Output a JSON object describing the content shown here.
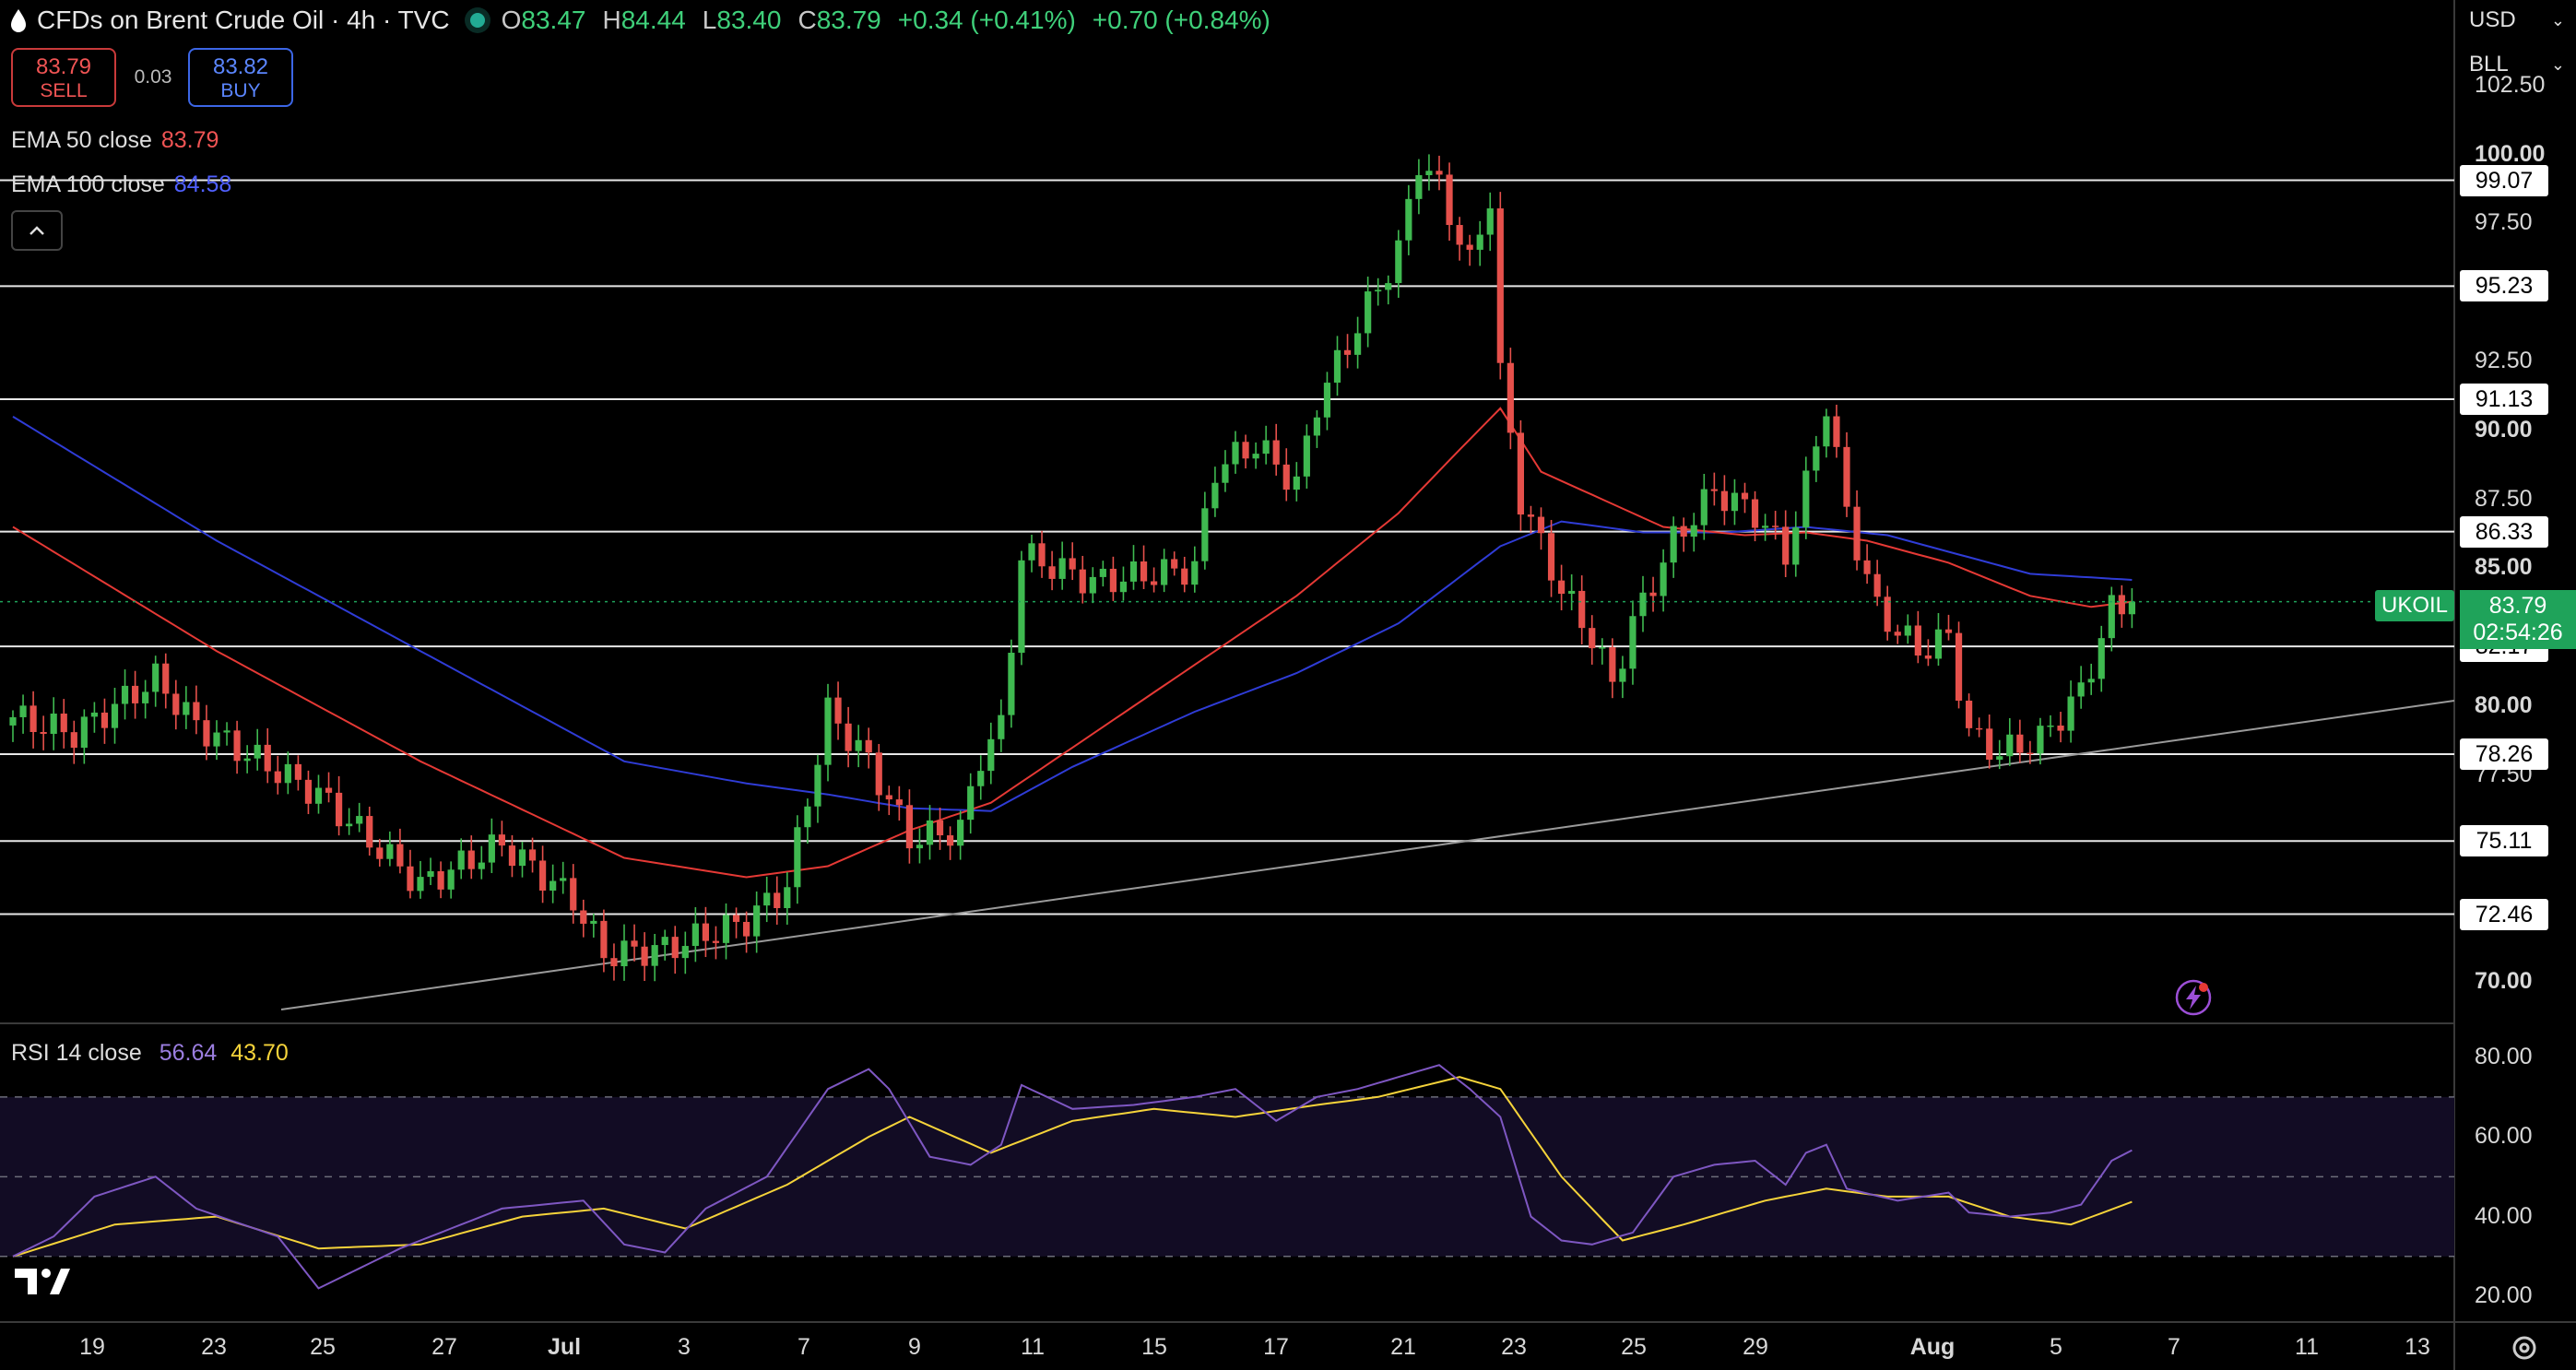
{
  "header": {
    "title": "CFDs on Brent Crude Oil · 4h · TVC",
    "open_label": "O",
    "open": "83.47",
    "high_label": "H",
    "high": "84.44",
    "low_label": "L",
    "low": "83.40",
    "close_label": "C",
    "close": "83.79",
    "change": "+0.34 (+0.41%)",
    "change2": "+0.70 (+0.84%)"
  },
  "trade": {
    "sell_price": "83.79",
    "sell_label": "SELL",
    "spread": "0.03",
    "buy_price": "83.82",
    "buy_label": "BUY"
  },
  "indicators": {
    "ema50_label": "EMA 50 close",
    "ema50_value": "83.79",
    "ema100_label": "EMA 100 close",
    "ema100_value": "84.58",
    "rsi_label": "RSI 14 close",
    "rsi_value": "56.64",
    "rsi_ma_value": "43.70"
  },
  "right_panel": {
    "currency": "USD",
    "unit": "BLL",
    "symbol_tag": "UKOIL",
    "last_price": "83.79",
    "countdown": "02:54:26"
  },
  "colors": {
    "up": "#3fb950",
    "down": "#e5504b",
    "ema50": "#e53935",
    "ema100": "#2f3cd6",
    "rsi": "#7e57c2",
    "rsi_ma": "#f5d33a",
    "last_price": "#1fa35a"
  },
  "chart_data": {
    "type": "candlestick",
    "symbol": "UKOIL",
    "timeframe": "4h",
    "y_ticks": [
      "102.50",
      "100.00",
      "97.50",
      "92.50",
      "90.00",
      "87.50",
      "85.00",
      "80.00",
      "77.50",
      "70.00"
    ],
    "ylim": [
      68.5,
      103.6
    ],
    "horizontal_levels": [
      "99.07",
      "95.23",
      "91.13",
      "86.33",
      "82.17",
      "78.26",
      "75.11",
      "72.46"
    ],
    "x_ticks": [
      "19",
      "23",
      "25",
      "27",
      "Jul",
      "3",
      "7",
      "9",
      "11",
      "15",
      "17",
      "21",
      "23",
      "25",
      "29",
      "Aug",
      "5",
      "7",
      "11",
      "13"
    ],
    "trendline_start": 69.0,
    "trendline_end": 80.2,
    "rsi_ticks": [
      "80.00",
      "60.00",
      "40.00",
      "20.00"
    ],
    "rsi_bands": [
      70,
      50,
      30
    ],
    "rsi_ylim": [
      14,
      88
    ],
    "close_keypoints": [
      [
        0,
        79.6
      ],
      [
        6,
        79.0
      ],
      [
        14,
        81.0
      ],
      [
        18,
        79.3
      ],
      [
        30,
        76.8
      ],
      [
        40,
        73.5
      ],
      [
        48,
        75.0
      ],
      [
        55,
        73.0
      ],
      [
        58,
        71.0
      ],
      [
        64,
        71.2
      ],
      [
        72,
        72.2
      ],
      [
        76,
        73.5
      ],
      [
        80,
        79.8
      ],
      [
        84,
        78.0
      ],
      [
        88,
        75.2
      ],
      [
        93,
        75.5
      ],
      [
        95,
        78.2
      ],
      [
        97,
        79.2
      ],
      [
        99,
        85.5
      ],
      [
        106,
        84.5
      ],
      [
        116,
        85.0
      ],
      [
        118,
        88.6
      ],
      [
        122,
        89.5
      ],
      [
        126,
        88.0
      ],
      [
        128,
        91.0
      ],
      [
        133,
        94.5
      ],
      [
        136,
        96.5
      ],
      [
        138,
        99.8
      ],
      [
        140,
        98.8
      ],
      [
        143,
        96.0
      ],
      [
        145,
        98.5
      ],
      [
        146,
        92.0
      ],
      [
        148,
        87.5
      ],
      [
        152,
        84.2
      ],
      [
        155,
        82.5
      ],
      [
        157,
        80.8
      ],
      [
        159,
        83.0
      ],
      [
        163,
        86.0
      ],
      [
        167,
        87.8
      ],
      [
        171,
        87.0
      ],
      [
        174,
        85.5
      ],
      [
        176,
        88.0
      ],
      [
        178,
        91.0
      ],
      [
        180,
        87.0
      ],
      [
        183,
        83.5
      ],
      [
        187,
        82.0
      ],
      [
        190,
        82.5
      ],
      [
        192,
        79.0
      ],
      [
        195,
        78.3
      ],
      [
        199,
        78.8
      ],
      [
        203,
        80.5
      ],
      [
        206,
        83.5
      ],
      [
        208,
        83.79
      ]
    ],
    "rsi_keypoints": [
      [
        0,
        30
      ],
      [
        4,
        35
      ],
      [
        8,
        45
      ],
      [
        14,
        50
      ],
      [
        18,
        42
      ],
      [
        26,
        35
      ],
      [
        30,
        22
      ],
      [
        38,
        32
      ],
      [
        48,
        42
      ],
      [
        56,
        44
      ],
      [
        60,
        33
      ],
      [
        64,
        31
      ],
      [
        68,
        42
      ],
      [
        74,
        50
      ],
      [
        80,
        72
      ],
      [
        84,
        77
      ],
      [
        86,
        72
      ],
      [
        90,
        55
      ],
      [
        94,
        53
      ],
      [
        97,
        58
      ],
      [
        99,
        73
      ],
      [
        104,
        67
      ],
      [
        110,
        68
      ],
      [
        116,
        70
      ],
      [
        120,
        72
      ],
      [
        124,
        64
      ],
      [
        128,
        70
      ],
      [
        132,
        72
      ],
      [
        136,
        75
      ],
      [
        140,
        78
      ],
      [
        143,
        72
      ],
      [
        146,
        65
      ],
      [
        149,
        40
      ],
      [
        152,
        34
      ],
      [
        155,
        33
      ],
      [
        159,
        36
      ],
      [
        163,
        50
      ],
      [
        167,
        53
      ],
      [
        171,
        54
      ],
      [
        174,
        48
      ],
      [
        176,
        56
      ],
      [
        178,
        58
      ],
      [
        180,
        47
      ],
      [
        185,
        44
      ],
      [
        190,
        46
      ],
      [
        192,
        41
      ],
      [
        196,
        40
      ],
      [
        200,
        41
      ],
      [
        203,
        43
      ],
      [
        206,
        54
      ],
      [
        208,
        56.64
      ]
    ],
    "rsi_ma_keypoints": [
      [
        0,
        30
      ],
      [
        10,
        38
      ],
      [
        20,
        40
      ],
      [
        30,
        32
      ],
      [
        40,
        33
      ],
      [
        50,
        40
      ],
      [
        58,
        42
      ],
      [
        66,
        37
      ],
      [
        76,
        48
      ],
      [
        84,
        60
      ],
      [
        88,
        65
      ],
      [
        96,
        56
      ],
      [
        104,
        64
      ],
      [
        112,
        67
      ],
      [
        120,
        65
      ],
      [
        128,
        68
      ],
      [
        134,
        70
      ],
      [
        142,
        75
      ],
      [
        146,
        72
      ],
      [
        152,
        50
      ],
      [
        158,
        34
      ],
      [
        164,
        38
      ],
      [
        172,
        44
      ],
      [
        178,
        47
      ],
      [
        184,
        45
      ],
      [
        190,
        45
      ],
      [
        196,
        40
      ],
      [
        202,
        38
      ],
      [
        208,
        43.7
      ]
    ],
    "ema50_keypoints": [
      [
        0,
        86.5
      ],
      [
        20,
        82.0
      ],
      [
        40,
        78.0
      ],
      [
        60,
        74.5
      ],
      [
        72,
        73.8
      ],
      [
        80,
        74.2
      ],
      [
        88,
        75.5
      ],
      [
        96,
        76.5
      ],
      [
        104,
        78.5
      ],
      [
        116,
        81.5
      ],
      [
        126,
        84.0
      ],
      [
        136,
        87.0
      ],
      [
        142,
        89.3
      ],
      [
        146,
        90.8
      ],
      [
        150,
        88.5
      ],
      [
        156,
        87.5
      ],
      [
        162,
        86.5
      ],
      [
        170,
        86.2
      ],
      [
        176,
        86.3
      ],
      [
        182,
        86.0
      ],
      [
        190,
        85.2
      ],
      [
        198,
        84.0
      ],
      [
        204,
        83.6
      ],
      [
        208,
        83.79
      ]
    ],
    "ema100_keypoints": [
      [
        0,
        90.5
      ],
      [
        20,
        86.0
      ],
      [
        40,
        82.0
      ],
      [
        60,
        78.0
      ],
      [
        72,
        77.2
      ],
      [
        80,
        76.8
      ],
      [
        88,
        76.3
      ],
      [
        96,
        76.2
      ],
      [
        104,
        77.8
      ],
      [
        116,
        79.8
      ],
      [
        126,
        81.2
      ],
      [
        136,
        83.0
      ],
      [
        146,
        85.8
      ],
      [
        152,
        86.7
      ],
      [
        160,
        86.3
      ],
      [
        168,
        86.3
      ],
      [
        176,
        86.5
      ],
      [
        184,
        86.2
      ],
      [
        192,
        85.4
      ],
      [
        198,
        84.8
      ],
      [
        208,
        84.58
      ]
    ]
  }
}
